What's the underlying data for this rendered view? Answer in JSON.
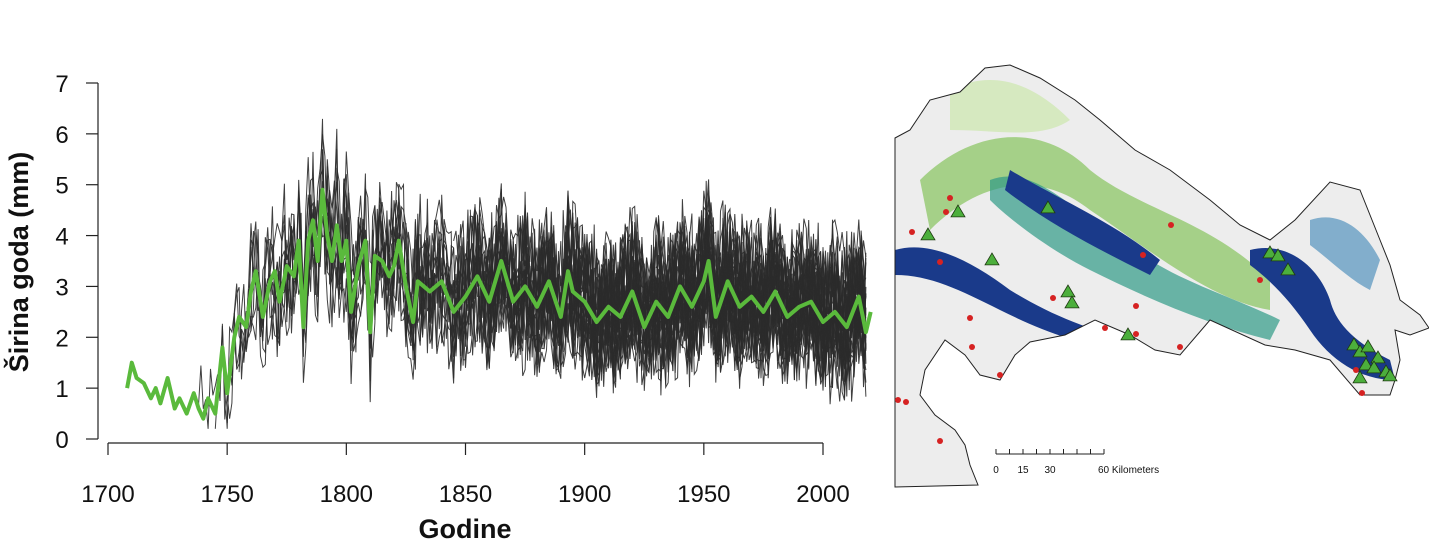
{
  "chart_data": {
    "type": "line",
    "xlabel": "Godine",
    "ylabel": "Širina goda (mm)",
    "xlim": [
      1700,
      2020
    ],
    "ylim": [
      0,
      7
    ],
    "x_ticks": [
      1700,
      1750,
      1800,
      1850,
      1900,
      1950,
      2000
    ],
    "y_ticks": [
      0,
      1,
      2,
      3,
      4,
      5,
      6,
      7
    ],
    "grid": false,
    "legend": "none",
    "series": [
      {
        "role": "mean-chronology",
        "color": "#5aba3c",
        "x": [
          1708,
          1710,
          1712,
          1715,
          1718,
          1720,
          1722,
          1725,
          1728,
          1730,
          1733,
          1736,
          1738,
          1740,
          1742,
          1745,
          1748,
          1750,
          1753,
          1755,
          1758,
          1760,
          1762,
          1765,
          1768,
          1770,
          1772,
          1775,
          1778,
          1780,
          1782,
          1784,
          1786,
          1788,
          1790,
          1792,
          1794,
          1796,
          1798,
          1800,
          1802,
          1805,
          1808,
          1810,
          1812,
          1815,
          1818,
          1820,
          1822,
          1825,
          1828,
          1830,
          1835,
          1840,
          1845,
          1850,
          1855,
          1860,
          1865,
          1870,
          1875,
          1880,
          1885,
          1890,
          1893,
          1895,
          1900,
          1905,
          1910,
          1915,
          1920,
          1925,
          1930,
          1935,
          1940,
          1945,
          1950,
          1952,
          1955,
          1960,
          1965,
          1970,
          1975,
          1980,
          1985,
          1990,
          1995,
          2000,
          2005,
          2010,
          2015,
          2018,
          2020
        ],
        "y": [
          1.0,
          1.5,
          1.2,
          1.1,
          0.8,
          1.0,
          0.7,
          1.2,
          0.6,
          0.8,
          0.5,
          0.9,
          0.6,
          0.4,
          0.8,
          0.5,
          1.8,
          0.9,
          2.0,
          2.4,
          2.2,
          2.9,
          3.3,
          2.4,
          3.1,
          3.3,
          2.7,
          3.4,
          3.2,
          3.9,
          2.2,
          3.9,
          4.3,
          3.5,
          4.9,
          4.0,
          3.5,
          4.2,
          3.5,
          3.9,
          2.5,
          3.4,
          3.9,
          2.1,
          3.6,
          3.5,
          3.2,
          3.4,
          3.9,
          3.0,
          2.3,
          3.1,
          2.9,
          3.1,
          2.5,
          2.8,
          3.2,
          2.7,
          3.5,
          2.7,
          3.0,
          2.6,
          3.1,
          2.4,
          3.3,
          2.9,
          2.7,
          2.3,
          2.6,
          2.4,
          2.9,
          2.2,
          2.7,
          2.4,
          3.0,
          2.6,
          3.1,
          3.5,
          2.4,
          3.1,
          2.6,
          2.8,
          2.5,
          2.9,
          2.4,
          2.6,
          2.7,
          2.3,
          2.5,
          2.2,
          2.8,
          2.1,
          2.5
        ]
      }
    ]
  },
  "map": {
    "scale_labels": [
      "0",
      "15",
      "30",
      "60 Kilometers"
    ],
    "colors": {
      "outline": "#222222",
      "background": "#ededed",
      "dark_blue": "#1a3a8a",
      "mid_blue": "#2a7ab0",
      "teal": "#2f9a86",
      "green": "#8cc565",
      "pale_green": "#cfe7b4",
      "site_triangle": "#4caf3c",
      "site_dot": "#d62222"
    }
  }
}
